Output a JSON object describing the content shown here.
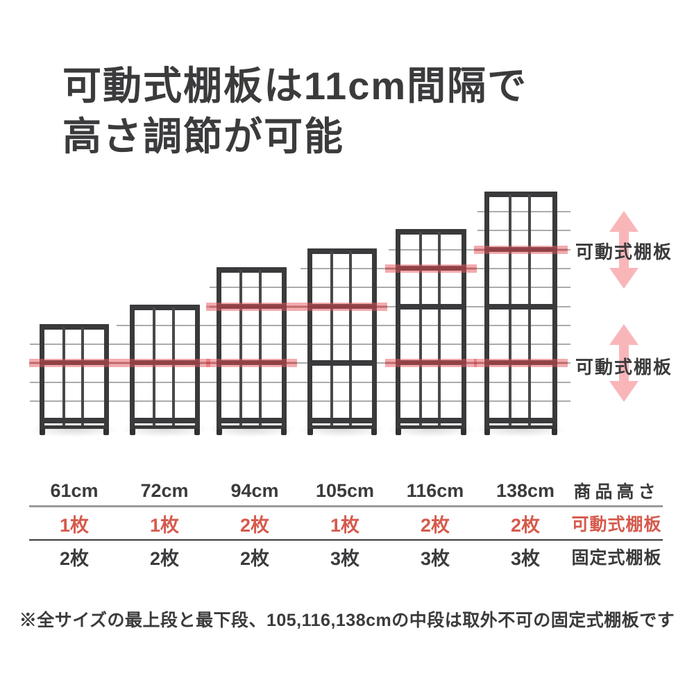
{
  "title": {
    "line1": "可動式棚板は11cm間隔で",
    "line2": "高さ調節が可能"
  },
  "diagram": {
    "interval_cm": 11,
    "arrow_labels": [
      {
        "label": "可動式棚板"
      },
      {
        "label": "可動式棚板"
      }
    ],
    "shelves": [
      {
        "name": "61cm",
        "height_cm": 61,
        "movable_levels": [
          2
        ],
        "fixed_mid_levels": []
      },
      {
        "name": "72cm",
        "height_cm": 72,
        "movable_levels": [
          2
        ],
        "fixed_mid_levels": []
      },
      {
        "name": "94cm",
        "height_cm": 94,
        "movable_levels": [
          2,
          5
        ],
        "fixed_mid_levels": []
      },
      {
        "name": "105cm",
        "height_cm": 105,
        "movable_levels": [
          5
        ],
        "fixed_mid_levels": [
          2
        ]
      },
      {
        "name": "116cm",
        "height_cm": 116,
        "movable_levels": [
          2,
          7
        ],
        "fixed_mid_levels": [
          5
        ]
      },
      {
        "name": "138cm",
        "height_cm": 138,
        "movable_levels": [
          2,
          8
        ],
        "fixed_mid_levels": [
          5
        ]
      }
    ]
  },
  "table": {
    "rows": [
      {
        "id": "height",
        "values": [
          "61cm",
          "72cm",
          "94cm",
          "105cm",
          "116cm",
          "138cm"
        ],
        "label": "商品高さ"
      },
      {
        "id": "movable",
        "values": [
          "1枚",
          "1枚",
          "2枚",
          "1枚",
          "2枚",
          "2枚"
        ],
        "label": "可動式棚板"
      },
      {
        "id": "fixed",
        "values": [
          "2枚",
          "2枚",
          "2枚",
          "3枚",
          "3枚",
          "3枚"
        ],
        "label": "固定式棚板"
      }
    ]
  },
  "note": "※全サイズの最上段と最下段、105,116,138cmの中段は取外不可の固定式棚板です",
  "colors": {
    "text_dark": "#3b3b3d",
    "accent_red": "#d65a4d",
    "band_red": "rgba(231,88,93,0.5)",
    "arrow_pink": "#f9b6b9",
    "gridline_gray": "#ababab",
    "frame_dark": "#3a3a3c"
  }
}
